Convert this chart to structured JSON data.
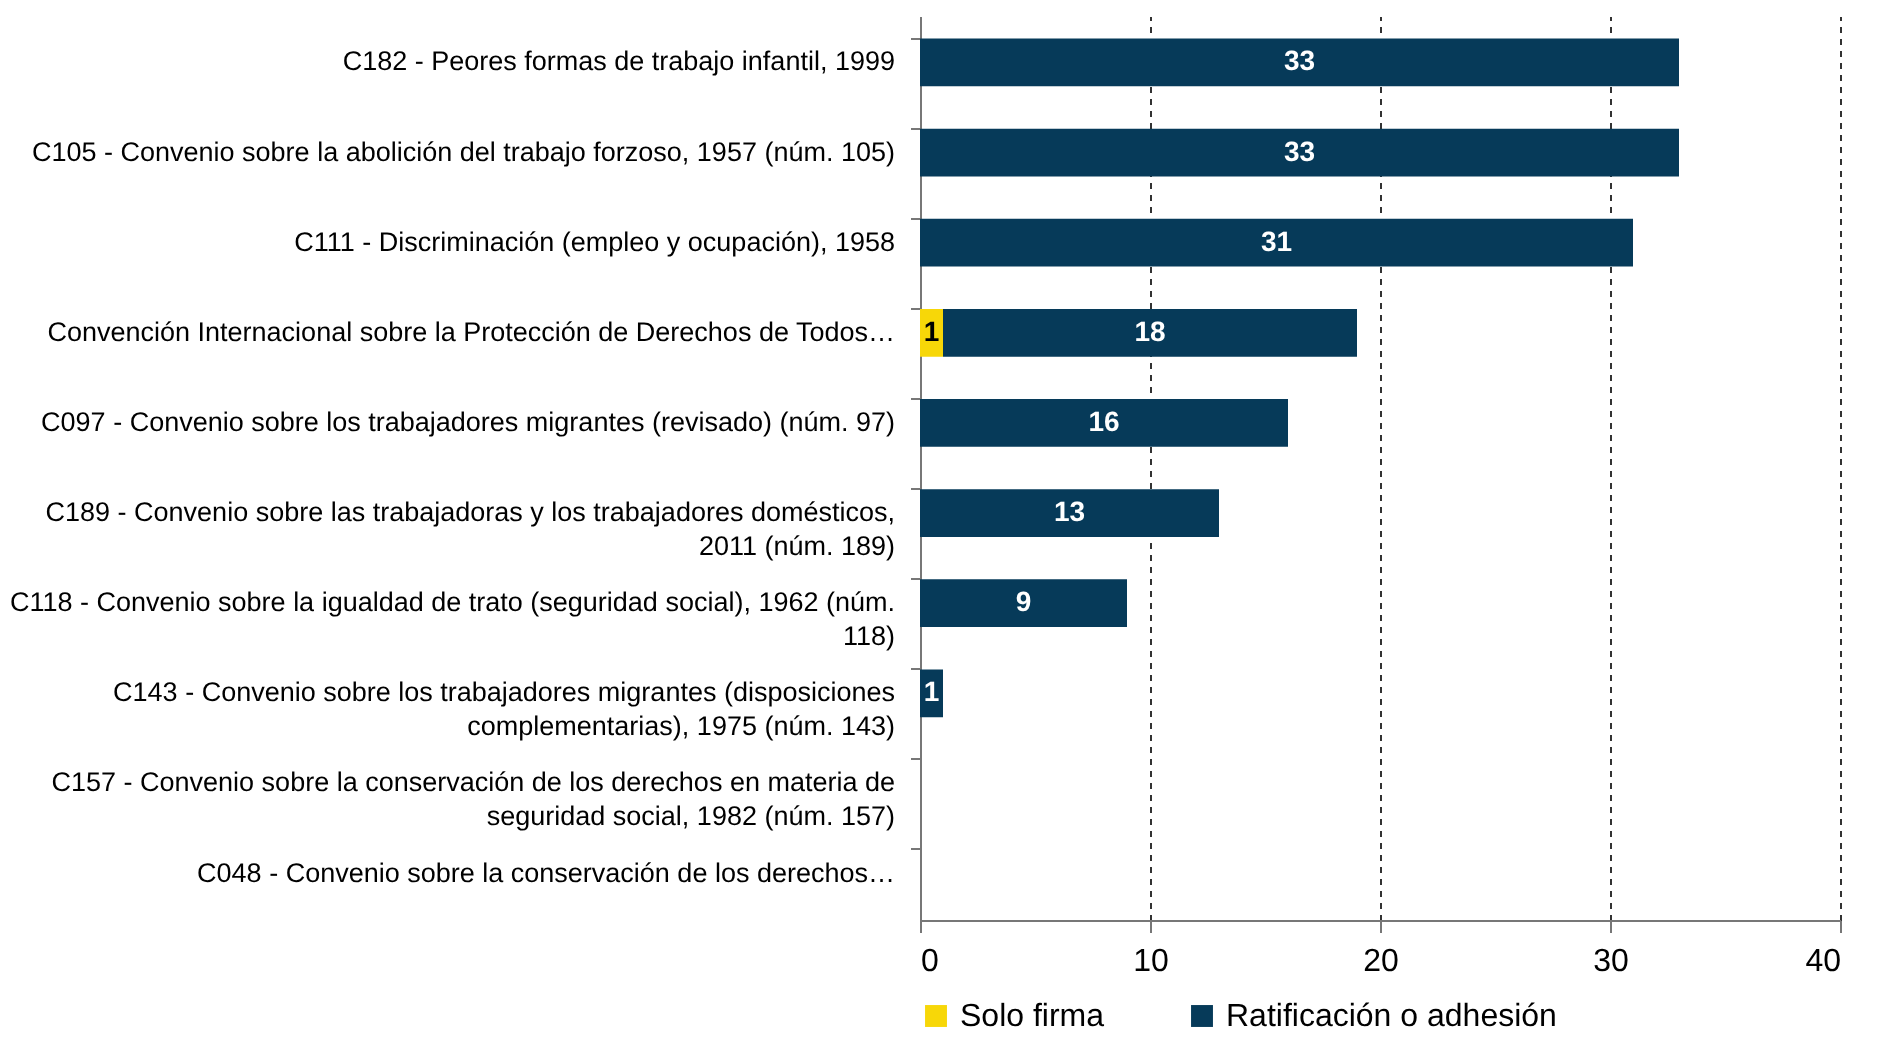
{
  "chart_data": {
    "type": "bar",
    "orientation": "horizontal",
    "stacked": true,
    "categories": [
      "C182 - Peores formas de trabajo infantil, 1999",
      "C105 - Convenio sobre la abolición del trabajo forzoso, 1957 (núm. 105)",
      "C111 - Discriminación (empleo y ocupación), 1958",
      "Convención Internacional sobre la Protección de Derechos de Todos…",
      "C097 - Convenio sobre los trabajadores migrantes (revisado) (núm. 97)",
      "C189 - Convenio sobre las trabajadoras y los trabajadores domésticos, 2011 (núm. 189)",
      "C118 - Convenio sobre la igualdad de trato (seguridad social), 1962 (núm. 118)",
      "C143 - Convenio sobre los trabajadores migrantes (disposiciones complementarias), 1975 (núm. 143)",
      "C157 - Convenio sobre la conservación de los derechos en materia de seguridad social, 1982 (núm. 157)",
      "C048 - Convenio sobre la conservación de los derechos…"
    ],
    "series": [
      {
        "name": "Solo firma",
        "color": "#f7d708",
        "values": [
          null,
          null,
          null,
          1,
          null,
          null,
          null,
          null,
          null,
          null
        ]
      },
      {
        "name": "Ratificación o adhesión",
        "color": "#063a59",
        "values": [
          33,
          33,
          31,
          18,
          16,
          13,
          9,
          1,
          null,
          null
        ]
      }
    ],
    "xlim": [
      0,
      40
    ],
    "xticks": [
      0,
      10,
      20,
      30,
      40
    ],
    "grid": "x",
    "legend": "bottom",
    "data_labels": true
  }
}
